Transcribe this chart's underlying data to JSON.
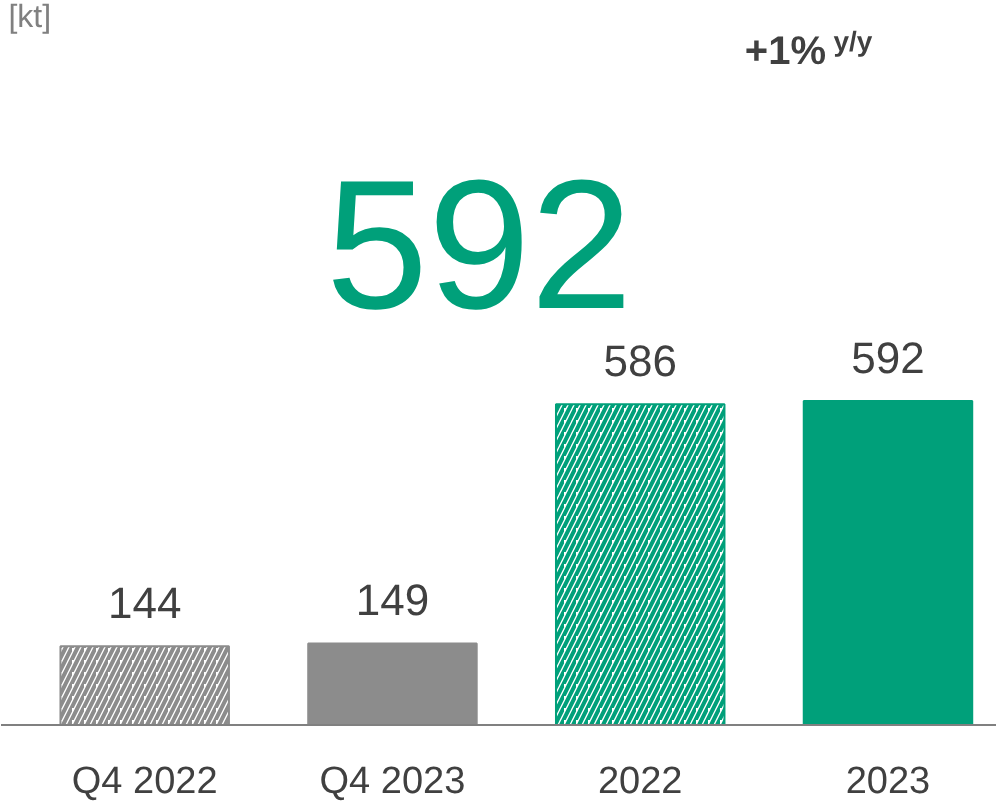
{
  "chart_data": {
    "type": "bar",
    "title": "[kt]",
    "categories": [
      "Q4 2022",
      "Q4 2023",
      "2022",
      "2023"
    ],
    "values": [
      144,
      149,
      586,
      592
    ],
    "colors": [
      "#8c8c8c",
      "#8c8c8c",
      "#00a07a",
      "#00a07a"
    ],
    "data_labels": true,
    "annotations": [
      "592",
      "+1% $^{y/y}$"
    ]
  }
}
